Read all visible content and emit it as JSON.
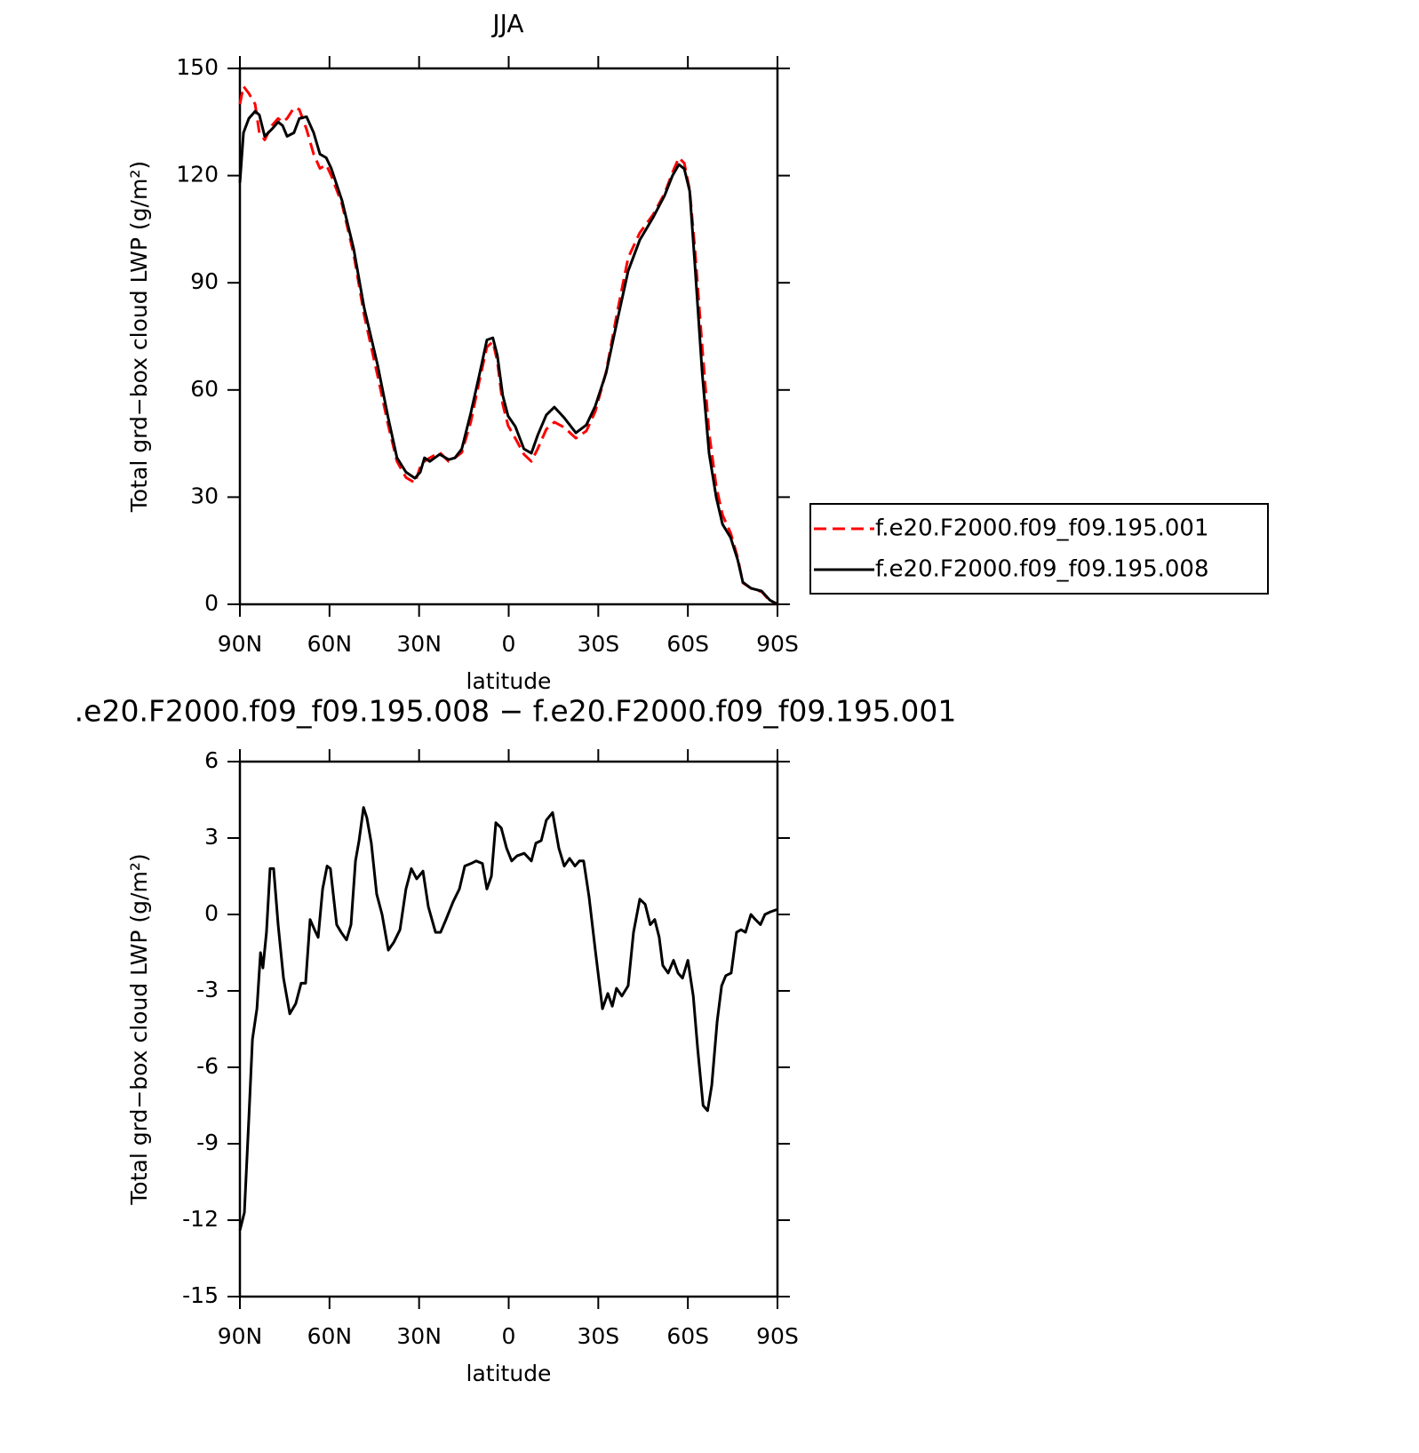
{
  "chart_data": [
    {
      "type": "line",
      "title": "JJA",
      "xlabel": "latitude",
      "ylabel": "Total grd−box cloud LWP (g/m²)",
      "x": [
        90,
        88.8,
        87.0,
        84.9,
        83.5,
        81.7,
        79.3,
        77.2,
        75.7,
        74.2,
        71.9,
        70.1,
        67.7,
        65.3,
        63.2,
        61.1,
        59.4,
        55.8,
        51.9,
        48.4,
        43.9,
        40.3,
        37.4,
        34.4,
        31.4,
        29.6,
        28.2,
        26.4,
        23.1,
        20.1,
        18.0,
        15.7,
        12.7,
        9.7,
        7.3,
        5.3,
        3.8,
        2.0,
        0.2,
        -2.2,
        -5.1,
        -7.6,
        -9.7,
        -12.6,
        -15.3,
        -18.6,
        -22.5,
        -26.0,
        -29.0,
        -32.6,
        -36.4,
        -40.0,
        -43.9,
        -48.3,
        -52.2,
        -54.9,
        -57.0,
        -58.8,
        -60.6,
        -62.4,
        -64.8,
        -67.1,
        -69.5,
        -71.6,
        -74.3,
        -76.7,
        -78.4,
        -81.1,
        -84.7,
        -87.4,
        -90
      ],
      "series": [
        {
          "name": "f.e20.F2000.f09_f09.195.001",
          "color": "#ff0000",
          "linestyle": "dashed",
          "values": [
            140,
            145,
            143,
            140,
            132,
            130,
            134,
            136,
            135,
            136,
            139,
            138.5,
            133,
            126,
            122,
            123,
            120,
            112,
            98,
            81,
            64,
            50,
            40,
            35.5,
            34,
            38.5,
            40,
            41,
            42.5,
            40,
            41,
            42.5,
            51,
            63,
            72,
            73.5,
            68,
            56,
            50,
            46.5,
            42,
            40,
            43.5,
            49,
            51,
            49.5,
            46.5,
            48.5,
            54,
            65,
            82,
            97,
            104,
            109,
            115,
            121,
            125,
            123.5,
            116,
            99,
            72,
            48,
            33,
            25,
            20,
            13,
            6,
            4.5,
            3.5,
            1,
            0
          ]
        },
        {
          "name": "f.e20.F2000.f09_f09.195.008",
          "color": "#000000",
          "linestyle": "solid",
          "values": [
            118,
            132,
            136,
            138,
            137,
            131,
            133,
            135,
            134,
            131,
            132,
            136,
            136.5,
            132,
            126,
            125,
            122,
            113,
            99.5,
            83,
            67,
            52,
            41,
            37,
            35.3,
            37,
            41,
            40,
            42,
            40.5,
            41,
            43.5,
            53.5,
            64.7,
            74,
            74.6,
            69.7,
            58.5,
            52.7,
            49.8,
            43.5,
            42.3,
            47.3,
            53,
            55.2,
            52.2,
            48,
            50.2,
            55.5,
            64.7,
            79.6,
            93.3,
            102,
            108.2,
            114.4,
            120.1,
            123.1,
            121.9,
            115.7,
            94.5,
            64.7,
            42.3,
            29.9,
            22.4,
            18.7,
            12.4,
            6.2,
            4.5,
            3.7,
            1.2,
            0
          ]
        }
      ],
      "xlim": [
        90,
        -90
      ],
      "xticks": [
        {
          "value": 90,
          "label": "90N"
        },
        {
          "value": 60,
          "label": "60N"
        },
        {
          "value": 30,
          "label": "30N"
        },
        0,
        {
          "value": -30,
          "label": "30S"
        },
        {
          "value": -60,
          "label": "60S"
        },
        {
          "value": -90,
          "label": "90S"
        }
      ],
      "ylim": [
        0,
        150
      ],
      "yticks": [
        0,
        30,
        60,
        90,
        120,
        150
      ],
      "legend": "right"
    },
    {
      "type": "line",
      "title": ".e20.F2000.f09_f09.195.008 − f.e20.F2000.f09_f09.195.001",
      "xlabel": "latitude",
      "ylabel": "Total grd−box cloud LWP (g/m²)",
      "x": [
        90,
        88.5,
        87.0,
        85.8,
        84.3,
        83.1,
        82.3,
        81.1,
        79.9,
        78.7,
        77.2,
        75.4,
        73.3,
        71.3,
        69.5,
        68.0,
        66.5,
        65.0,
        63.8,
        62.3,
        60.8,
        59.7,
        57.6,
        56.1,
        54.3,
        52.8,
        51.3,
        50.1,
        48.6,
        47.5,
        46.0,
        44.2,
        42.4,
        40.3,
        38.5,
        36.4,
        34.4,
        32.6,
        30.8,
        28.7,
        26.9,
        24.5,
        22.8,
        21.0,
        18.6,
        16.5,
        14.7,
        12.6,
        10.9,
        8.8,
        7.3,
        5.8,
        4.3,
        2.5,
        0.7,
        -1.0,
        -2.8,
        -5.2,
        -7.6,
        -9.1,
        -10.9,
        -12.6,
        -14.7,
        -16.8,
        -18.6,
        -20.4,
        -22.2,
        -23.7,
        -25.1,
        -26.9,
        -29.0,
        -31.4,
        -33.2,
        -34.7,
        -36.1,
        -37.9,
        -40.0,
        -41.8,
        -43.9,
        -45.7,
        -47.4,
        -48.9,
        -50.4,
        -51.6,
        -53.4,
        -55.2,
        -56.7,
        -58.2,
        -60.0,
        -61.8,
        -63.3,
        -65.1,
        -66.6,
        -68.0,
        -69.8,
        -71.3,
        -72.7,
        -74.5,
        -76.3,
        -77.8,
        -79.3,
        -81.1,
        -82.6,
        -84.3,
        -85.8,
        -87.6,
        -90
      ],
      "series": [
        {
          "color": "#000000",
          "linestyle": "solid",
          "values": [
            -12.4,
            -11.7,
            -8,
            -4.9,
            -3.7,
            -1.5,
            -2.1,
            -0.7,
            1.8,
            1.8,
            -0.4,
            -2.5,
            -3.9,
            -3.5,
            -2.7,
            -2.7,
            -0.2,
            -0.6,
            -0.9,
            1.0,
            1.9,
            1.8,
            -0.4,
            -0.7,
            -1.0,
            -0.4,
            2.1,
            2.9,
            4.2,
            3.8,
            2.8,
            0.8,
            0,
            -1.4,
            -1.1,
            -0.6,
            1.0,
            1.8,
            1.4,
            1.7,
            0.3,
            -0.7,
            -0.7,
            -0.2,
            0.5,
            1.0,
            1.9,
            2.0,
            2.1,
            2.0,
            1.0,
            1.5,
            3.6,
            3.4,
            2.6,
            2.1,
            2.3,
            2.4,
            2.1,
            2.8,
            2.9,
            3.7,
            4.0,
            2.6,
            1.9,
            2.2,
            1.9,
            2.1,
            2.1,
            0.7,
            -1.4,
            -3.7,
            -3.1,
            -3.6,
            -2.9,
            -3.2,
            -2.8,
            -0.7,
            0.6,
            0.4,
            -0.4,
            -0.2,
            -0.9,
            -2.0,
            -2.3,
            -1.8,
            -2.3,
            -2.5,
            -1.8,
            -3.2,
            -5.3,
            -7.5,
            -7.7,
            -6.7,
            -4.2,
            -2.8,
            -2.4,
            -2.3,
            -0.7,
            -0.6,
            -0.7,
            0,
            -0.2,
            -0.4,
            0,
            0.1,
            0.2
          ]
        }
      ],
      "xlim": [
        90,
        -90
      ],
      "xticks": [
        {
          "value": 90,
          "label": "90N"
        },
        {
          "value": 60,
          "label": "60N"
        },
        {
          "value": 30,
          "label": "30N"
        },
        0,
        {
          "value": -30,
          "label": "30S"
        },
        {
          "value": -60,
          "label": "60S"
        },
        {
          "value": -90,
          "label": "90S"
        }
      ],
      "ylim": [
        -15,
        6
      ],
      "yticks": [
        -15,
        -12,
        -9,
        -6,
        -3,
        0,
        3,
        6
      ]
    }
  ]
}
